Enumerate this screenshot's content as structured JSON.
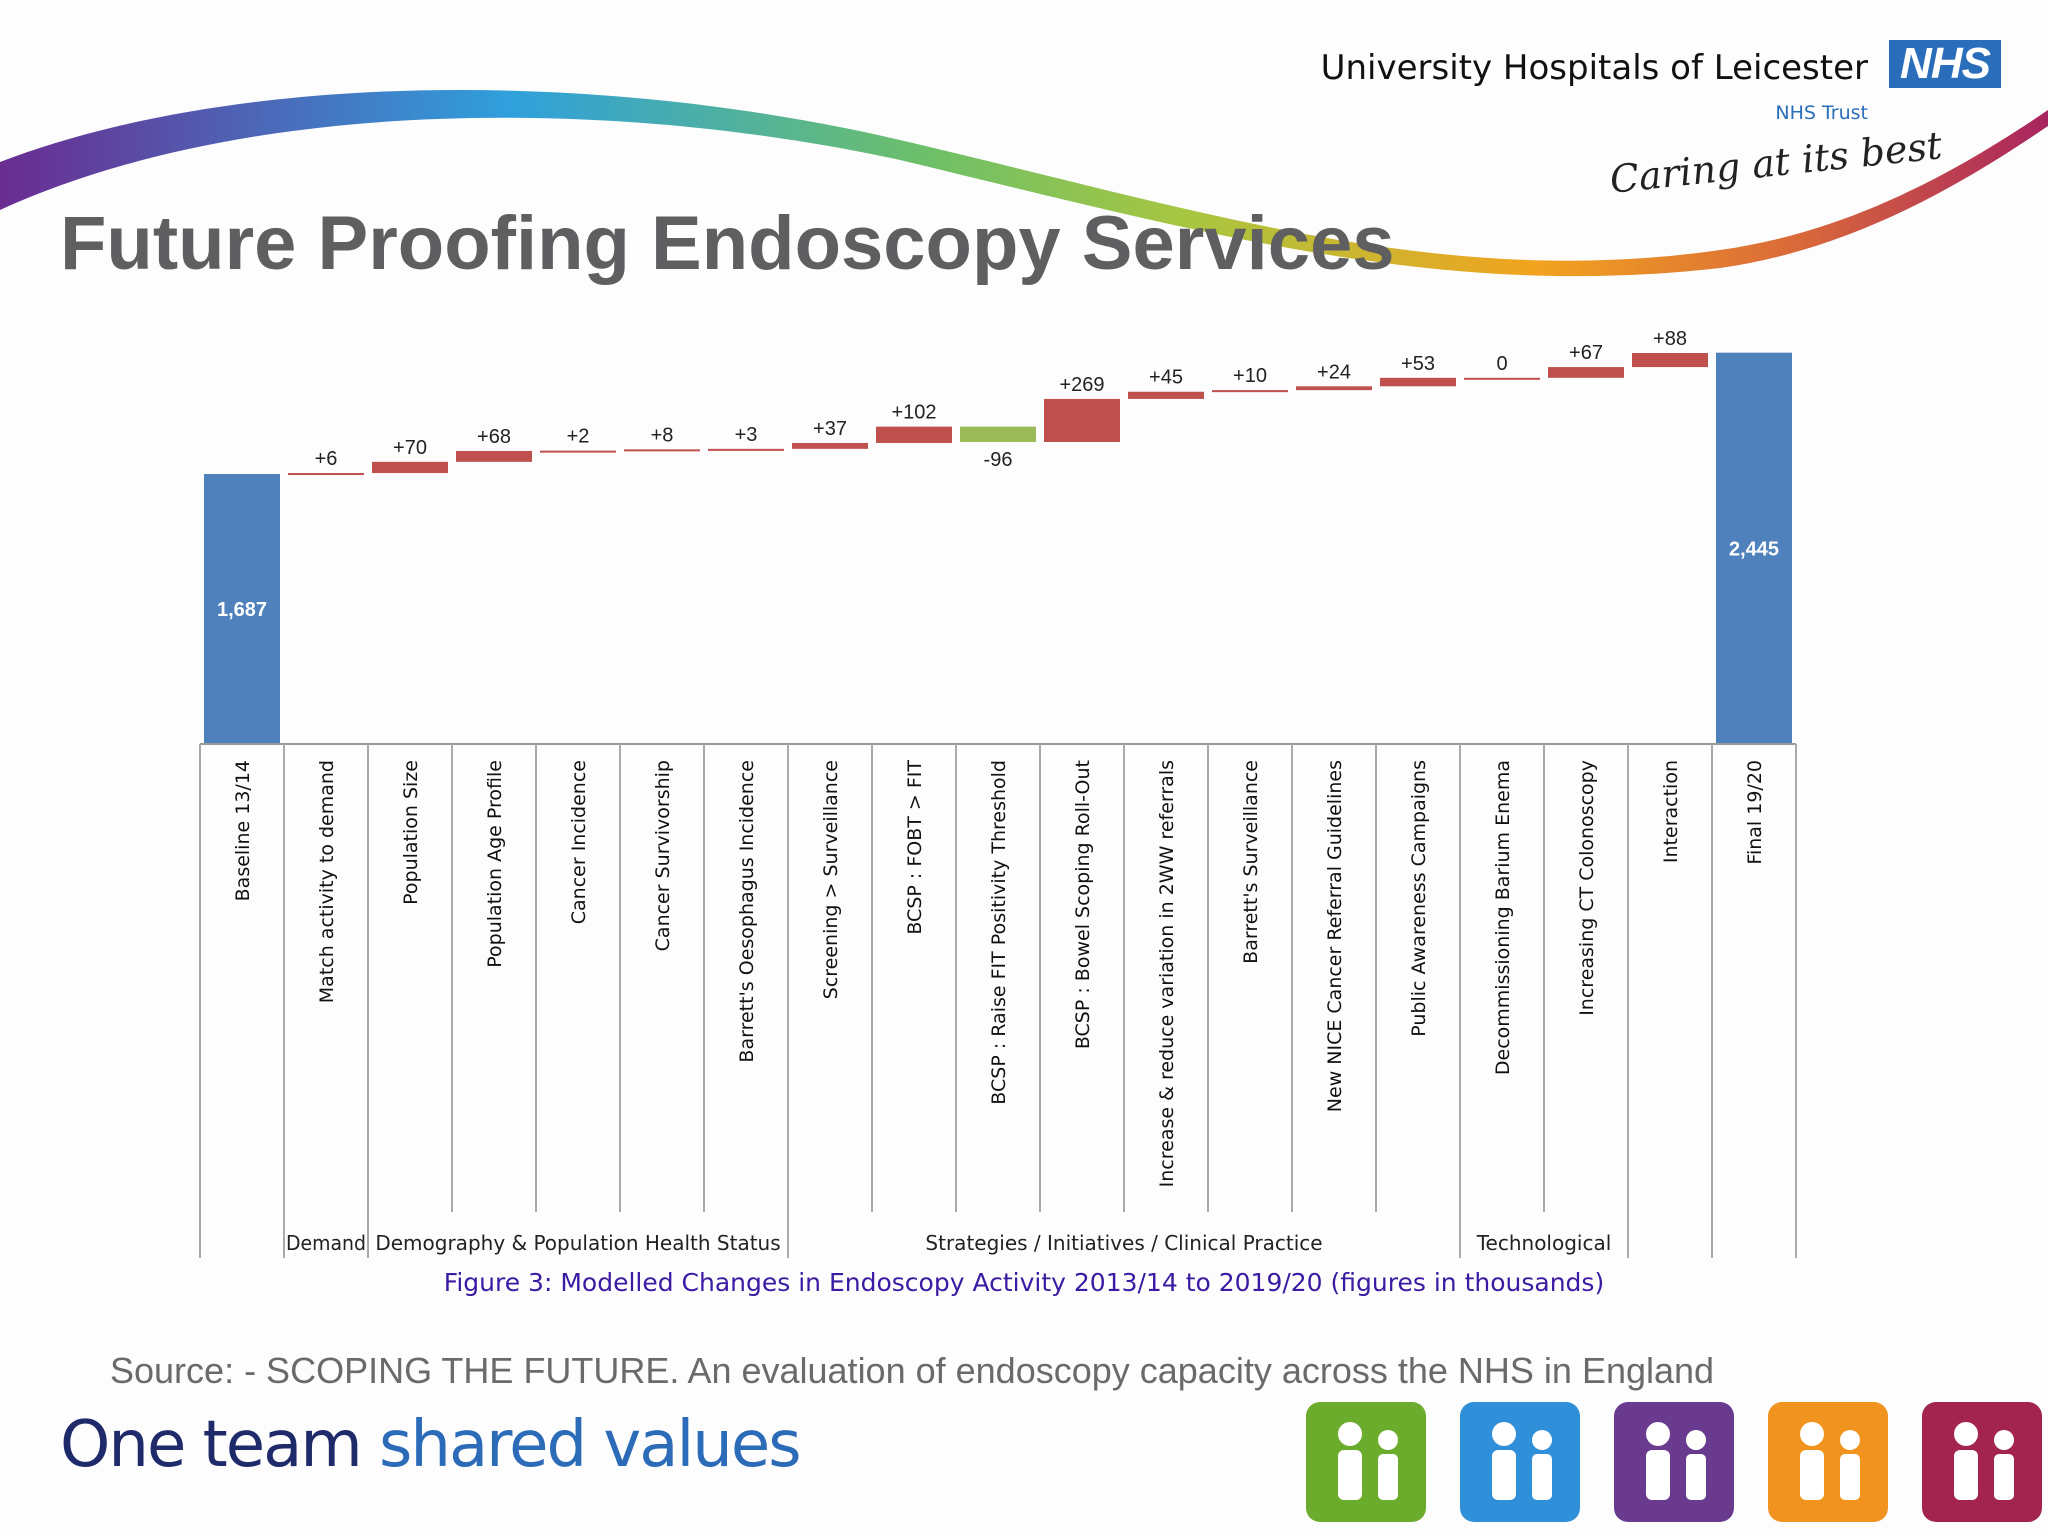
{
  "header": {
    "org_name": "University Hospitals of Leicester",
    "nhs_logo": "NHS",
    "trust": "NHS Trust",
    "tagline": "Caring at its best"
  },
  "title": "Future Proofing Endoscopy Services",
  "chart_data": {
    "type": "waterfall",
    "unit": "thousands",
    "bars": [
      {
        "label": "Baseline 13/14",
        "value": 1687,
        "kind": "total",
        "data_label": "1,687"
      },
      {
        "label": "Match activity to demand",
        "value": 6,
        "kind": "delta",
        "data_label": "+6"
      },
      {
        "label": "Population Size",
        "value": 70,
        "kind": "delta",
        "data_label": "+70"
      },
      {
        "label": "Population Age Profile",
        "value": 68,
        "kind": "delta",
        "data_label": "+68"
      },
      {
        "label": "Cancer Incidence",
        "value": 2,
        "kind": "delta",
        "data_label": "+2"
      },
      {
        "label": "Cancer Survivorship",
        "value": 8,
        "kind": "delta",
        "data_label": "+8"
      },
      {
        "label": "Barrett's Oesophagus Incidence",
        "value": 3,
        "kind": "delta",
        "data_label": "+3"
      },
      {
        "label": "Screening > Surveillance",
        "value": 37,
        "kind": "delta",
        "data_label": "+37"
      },
      {
        "label": "BCSP : FOBT > FIT",
        "value": 102,
        "kind": "delta",
        "data_label": "+102"
      },
      {
        "label": "BCSP : Raise FIT Positivity Threshold",
        "value": -96,
        "kind": "delta",
        "data_label": "-96"
      },
      {
        "label": "BCSP : Bowel Scoping Roll-Out",
        "value": 269,
        "kind": "delta",
        "data_label": "+269"
      },
      {
        "label": "Increase & reduce variation in 2WW referrals",
        "value": 45,
        "kind": "delta",
        "data_label": "+45"
      },
      {
        "label": "Barrett's Surveillance",
        "value": 10,
        "kind": "delta",
        "data_label": "+10"
      },
      {
        "label": "New NICE Cancer Referral Guidelines",
        "value": 24,
        "kind": "delta",
        "data_label": "+24"
      },
      {
        "label": "Public Awareness Campaigns",
        "value": 53,
        "kind": "delta",
        "data_label": "+53"
      },
      {
        "label": "Decommissioning Barium Enema",
        "value": 0,
        "kind": "delta",
        "data_label": "0"
      },
      {
        "label": "Increasing CT Colonoscopy",
        "value": 67,
        "kind": "delta",
        "data_label": "+67"
      },
      {
        "label": "Interaction",
        "value": 88,
        "kind": "delta",
        "data_label": "+88"
      },
      {
        "label": "Final 19/20",
        "value": 2445,
        "kind": "total",
        "data_label": "2,445"
      }
    ],
    "groups": [
      {
        "label": "Demand",
        "from": 1,
        "to": 1
      },
      {
        "label": "Demography & Population Health Status",
        "from": 2,
        "to": 6
      },
      {
        "label": "Strategies / Initiatives / Clinical Practice",
        "from": 7,
        "to": 14
      },
      {
        "label": "Technological",
        "from": 15,
        "to": 16
      }
    ],
    "colors": {
      "total": "#4f81bd",
      "increase": "#c0504d",
      "decrease": "#9bbb59"
    },
    "caption": "Figure 3: Modelled Changes in Endoscopy Activity 2013/14 to 2019/20 (figures in thousands)"
  },
  "source": "Source: - SCOPING THE FUTURE.  An evaluation of endoscopy capacity across the NHS in England",
  "footer": {
    "motto_part1": "One team",
    "motto_part2": "shared values",
    "value_icons": [
      {
        "name": "team-people-icon",
        "color": "#6cac2c"
      },
      {
        "name": "speech-bubble-icon",
        "color": "#2f8fd8"
      },
      {
        "name": "magnifier-family-icon",
        "color": "#6a3a8e"
      },
      {
        "name": "lightbulb-idea-icon",
        "color": "#f0941f"
      },
      {
        "name": "family-group-icon",
        "color": "#a3244f"
      }
    ]
  }
}
